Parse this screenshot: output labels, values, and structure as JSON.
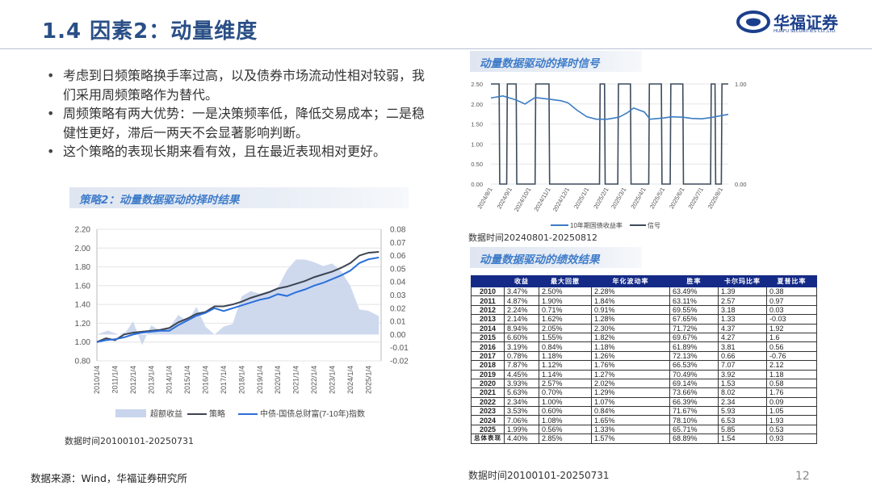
{
  "header": {
    "title": "1.4 因素2：动量维度",
    "logo_cn": "华福证券",
    "logo_en": "HUAFU SECURITIES CO.,LTD."
  },
  "bullets": [
    "考虑到日频策略换手率过高，以及债券市场流动性相对较弱，我们采用周频策略作为替代。",
    "周频策略有两大优势：一是决策频率低，降低交易成本；二是稳健性更好，滞后一两天不会显著影响判断。",
    "这个策略的表现长期来看有效，且在最近表现相对更好。"
  ],
  "sections": {
    "strategy_title": "策略2：动量数据驱动的择时结果",
    "signal_title": "动量数据驱动的择时信号",
    "perf_title": "动量数据驱动的绩效结果"
  },
  "notes": {
    "chart1_period": "数据时间20100101-20250731",
    "chart2_period": "数据时间20240801-20250812",
    "table_period": "数据时间20100101-20250731",
    "source": "数据来源：Wind，华福证券研究所",
    "page": "12"
  },
  "colors": {
    "title": "#2a4f86",
    "excess_fill": "#c9d5ec",
    "strategy_line": "#3d4452",
    "index_line": "#2a6fdb",
    "yield_line": "#3b7dc4",
    "signal_line": "#3d4b5c",
    "table_header": "#142a86"
  },
  "chart_data": [
    {
      "type": "area",
      "x_ticks": [
        "2010/1/4",
        "2011/1/4",
        "2012/1/4",
        "2013/1/4",
        "2014/1/4",
        "2015/1/4",
        "2016/1/4",
        "2017/1/4",
        "2018/1/4",
        "2019/1/4",
        "2020/1/4",
        "2021/1/4",
        "2022/1/4",
        "2023/1/4",
        "2024/1/4",
        "2025/1/4"
      ],
      "y_left_ticks": [
        "2.20",
        "2.00",
        "1.80",
        "1.60",
        "1.40",
        "1.20",
        "1.00",
        "0.80"
      ],
      "y_right_ticks": [
        "0.08",
        "0.07",
        "0.06",
        "0.05",
        "0.04",
        "0.03",
        "0.02",
        "0.01",
        "0.00",
        "-0.01",
        "-0.02"
      ],
      "ylim_left": [
        0.8,
        2.2
      ],
      "ylim_right": [
        -0.02,
        0.08
      ],
      "legend": [
        "超额收益",
        "策略",
        "中债-国债总财富(7-10年)指数"
      ],
      "series": [
        {
          "name": "超额收益",
          "axis": "right",
          "x": [
            2010.0,
            2010.6,
            2011.2,
            2011.6,
            2012.0,
            2012.5,
            2013.0,
            2013.5,
            2014.0,
            2014.5,
            2015.0,
            2015.5,
            2016.0,
            2016.5,
            2017.0,
            2017.5,
            2018.0,
            2018.5,
            2019.0,
            2019.5,
            2020.0,
            2020.5,
            2021.0,
            2021.5,
            2022.0,
            2022.5,
            2023.0,
            2023.5,
            2024.0,
            2024.5,
            2025.0,
            2025.58
          ],
          "values": [
            0.0,
            0.003,
            0.0,
            0.002,
            0.01,
            -0.008,
            0.007,
            0.003,
            0.005,
            0.015,
            0.01,
            0.021,
            0.006,
            0.0,
            0.006,
            0.008,
            0.029,
            0.033,
            0.031,
            0.033,
            0.036,
            0.049,
            0.057,
            0.057,
            0.055,
            0.052,
            0.054,
            0.048,
            0.037,
            0.019,
            0.018,
            0.014
          ]
        },
        {
          "name": "策略",
          "axis": "left",
          "x": [
            2010.0,
            2010.5,
            2011.0,
            2011.5,
            2012.0,
            2012.5,
            2013.0,
            2013.5,
            2014.0,
            2014.5,
            2015.0,
            2015.5,
            2016.0,
            2016.5,
            2017.0,
            2017.5,
            2018.0,
            2018.5,
            2019.0,
            2019.5,
            2020.0,
            2020.5,
            2021.0,
            2021.5,
            2022.0,
            2022.5,
            2023.0,
            2023.5,
            2024.0,
            2024.5,
            2025.0,
            2025.58
          ],
          "values": [
            1.0,
            1.04,
            1.02,
            1.08,
            1.1,
            1.11,
            1.12,
            1.13,
            1.15,
            1.21,
            1.25,
            1.3,
            1.32,
            1.38,
            1.38,
            1.4,
            1.43,
            1.47,
            1.5,
            1.53,
            1.57,
            1.59,
            1.62,
            1.65,
            1.69,
            1.72,
            1.75,
            1.79,
            1.84,
            1.92,
            1.95,
            1.96
          ]
        },
        {
          "name": "中债-国债总财富(7-10年)指数",
          "axis": "left",
          "x": [
            2010.0,
            2010.5,
            2011.0,
            2011.5,
            2012.0,
            2012.5,
            2013.0,
            2013.5,
            2014.0,
            2014.5,
            2015.0,
            2015.5,
            2016.0,
            2016.5,
            2017.0,
            2017.5,
            2018.0,
            2018.5,
            2019.0,
            2019.5,
            2020.0,
            2020.5,
            2021.0,
            2021.5,
            2022.0,
            2022.5,
            2023.0,
            2023.5,
            2024.0,
            2024.5,
            2025.0,
            2025.58
          ],
          "values": [
            1.0,
            1.02,
            1.03,
            1.05,
            1.08,
            1.1,
            1.11,
            1.12,
            1.12,
            1.18,
            1.23,
            1.28,
            1.31,
            1.36,
            1.33,
            1.36,
            1.39,
            1.42,
            1.45,
            1.47,
            1.51,
            1.49,
            1.53,
            1.56,
            1.6,
            1.63,
            1.67,
            1.71,
            1.76,
            1.84,
            1.88,
            1.9
          ]
        }
      ]
    },
    {
      "type": "line",
      "x_ticks": [
        "2024/8/1",
        "2024/9/1",
        "2024/10/1",
        "2024/11/1",
        "2024/12/1",
        "2025/1/1",
        "2025/2/1",
        "2025/3/1",
        "2025/4/1",
        "2025/5/1",
        "2025/6/1",
        "2025/7/1",
        "2025/8/1"
      ],
      "y_left_ticks": [
        "2.50",
        "2.00",
        "1.50",
        "1.00",
        "0.50",
        "0.00"
      ],
      "y_right_ticks": [
        "1.00",
        "0.00"
      ],
      "ylim_left": [
        0,
        2.5
      ],
      "ylim_right": [
        0,
        1
      ],
      "legend": [
        "10年期国债收益率",
        "信号"
      ],
      "series": [
        {
          "name": "10年期国债收益率",
          "axis": "left",
          "x": [
            "2024-08-01",
            "2024-08-20",
            "2024-09-10",
            "2024-09-24",
            "2024-10-10",
            "2024-11-01",
            "2024-11-20",
            "2024-12-01",
            "2024-12-15",
            "2024-12-31",
            "2025-01-15",
            "2025-02-01",
            "2025-02-20",
            "2025-03-05",
            "2025-03-15",
            "2025-04-01",
            "2025-04-10",
            "2025-05-01",
            "2025-05-15",
            "2025-06-01",
            "2025-06-15",
            "2025-07-01",
            "2025-07-15",
            "2025-08-01",
            "2025-08-12"
          ],
          "values": [
            2.15,
            2.2,
            2.1,
            2.0,
            2.16,
            2.12,
            2.08,
            2.03,
            1.85,
            1.68,
            1.62,
            1.62,
            1.67,
            1.78,
            1.9,
            1.8,
            1.62,
            1.65,
            1.68,
            1.67,
            1.64,
            1.63,
            1.66,
            1.71,
            1.74
          ]
        },
        {
          "name": "信号",
          "axis": "right",
          "x": [
            "2024-08-01",
            "2024-08-14",
            "2024-08-15",
            "2024-08-26",
            "2024-08-27",
            "2024-09-10",
            "2024-09-11",
            "2024-10-10",
            "2024-10-11",
            "2024-11-01",
            "2024-11-02",
            "2025-01-20",
            "2025-01-21",
            "2025-01-28",
            "2025-01-29",
            "2025-02-18",
            "2025-02-19",
            "2025-03-10",
            "2025-03-11",
            "2025-04-08",
            "2025-04-09",
            "2025-04-28",
            "2025-04-29",
            "2025-05-12",
            "2025-05-13",
            "2025-06-01",
            "2025-06-02",
            "2025-07-15",
            "2025-07-16",
            "2025-07-22",
            "2025-07-23",
            "2025-08-01",
            "2025-08-02",
            "2025-08-12"
          ],
          "values": [
            1,
            1,
            0,
            0,
            1,
            1,
            0,
            0,
            1,
            1,
            0,
            0,
            1,
            1,
            0,
            0,
            1,
            1,
            0,
            0,
            1,
            1,
            0,
            0,
            1,
            1,
            0,
            0,
            1,
            1,
            0,
            0,
            1,
            1
          ]
        }
      ]
    },
    {
      "type": "table",
      "columns": [
        "收益",
        "最大回撤",
        "年化波动率",
        "胜率",
        "卡尔玛比率",
        "夏普比率"
      ],
      "rows": [
        [
          "2010",
          "3.47%",
          "2.50%",
          "2.28%",
          "63.49%",
          "1.39",
          "0.38"
        ],
        [
          "2011",
          "4.87%",
          "1.90%",
          "1.84%",
          "63.11%",
          "2.57",
          "0.97"
        ],
        [
          "2012",
          "2.24%",
          "0.71%",
          "0.91%",
          "69.55%",
          "3.18",
          "0.03"
        ],
        [
          "2013",
          "2.14%",
          "1.62%",
          "1.28%",
          "67.65%",
          "1.33",
          "-0.03"
        ],
        [
          "2014",
          "8.94%",
          "2.05%",
          "2.30%",
          "71.72%",
          "4.37",
          "1.92"
        ],
        [
          "2015",
          "6.60%",
          "1.55%",
          "1.82%",
          "69.67%",
          "4.27",
          "1.6"
        ],
        [
          "2016",
          "3.19%",
          "0.84%",
          "1.18%",
          "61.89%",
          "3.81",
          "0.56"
        ],
        [
          "2017",
          "0.78%",
          "1.18%",
          "1.26%",
          "72.13%",
          "0.66",
          "-0.76"
        ],
        [
          "2018",
          "7.87%",
          "1.12%",
          "1.76%",
          "66.53%",
          "7.07",
          "2.12"
        ],
        [
          "2019",
          "4.45%",
          "1.14%",
          "1.27%",
          "70.49%",
          "3.92",
          "1.18"
        ],
        [
          "2020",
          "3.93%",
          "2.57%",
          "2.02%",
          "69.14%",
          "1.53",
          "0.58"
        ],
        [
          "2021",
          "5.63%",
          "0.70%",
          "1.29%",
          "73.66%",
          "8.02",
          "1.76"
        ],
        [
          "2022",
          "2.34%",
          "1.00%",
          "1.07%",
          "66.39%",
          "2.34",
          "0.09"
        ],
        [
          "2023",
          "3.53%",
          "0.60%",
          "0.84%",
          "71.67%",
          "5.93",
          "1.05"
        ],
        [
          "2024",
          "7.06%",
          "1.08%",
          "1.65%",
          "78.10%",
          "6.53",
          "1.93"
        ],
        [
          "2025",
          "1.99%",
          "0.56%",
          "1.33%",
          "65.71%",
          "5.85",
          "0.53"
        ],
        [
          "总体表现",
          "4.40%",
          "2.85%",
          "1.57%",
          "68.89%",
          "1.54",
          "0.93"
        ]
      ]
    }
  ]
}
